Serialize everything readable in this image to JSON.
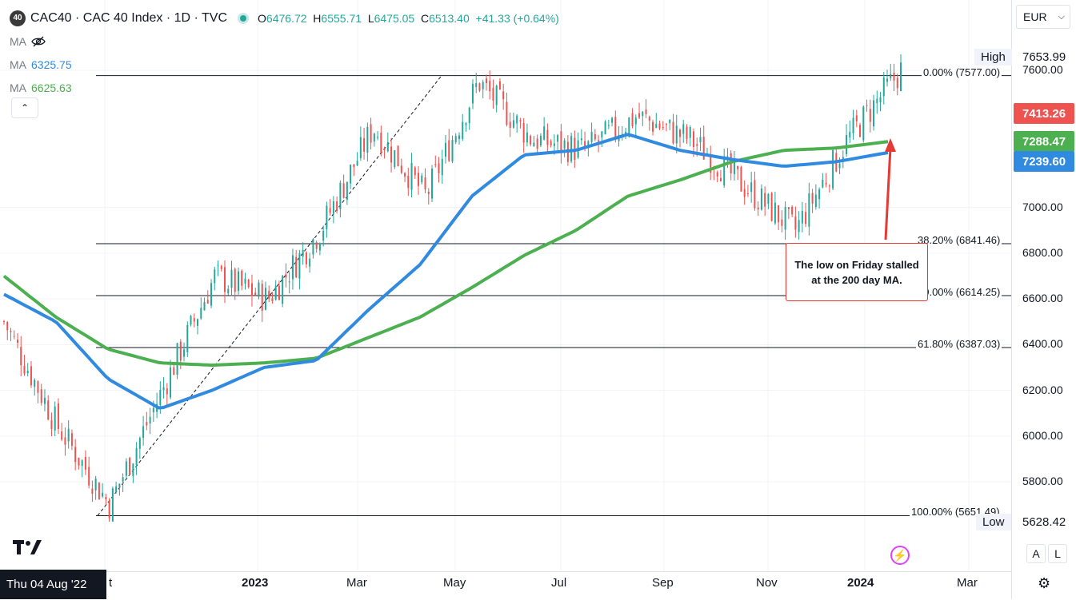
{
  "header": {
    "badge": "40",
    "title": "CAC40 · CAC 40 Index · 1D · TVC",
    "ohlc": {
      "o_label": "O",
      "o": "6476.72",
      "h_label": "H",
      "h": "6555.71",
      "l_label": "L",
      "l": "6475.05",
      "c_label": "C",
      "c": "6513.40",
      "change": "+41.33 (+0.64%)"
    },
    "ma_hidden_label": "MA",
    "ma1_label": "MA",
    "ma1_value": "6325.75",
    "ma2_label": "MA",
    "ma2_value": "6625.63",
    "collapse_icon": "chevron-up-icon"
  },
  "currency": "EUR",
  "price_axis": {
    "ticks": [
      "7600.00",
      "7000.00",
      "6800.00",
      "6600.00",
      "6400.00",
      "6200.00",
      "6000.00",
      "5800.00"
    ],
    "high_label": "High",
    "high_value": "7653.99",
    "low_label": "Low",
    "low_value": "5628.42",
    "last_price": "7413.26",
    "ma_green_tag": "7288.47",
    "ma_blue_tag": "7239.60",
    "scale_auto": "A",
    "scale_log": "L"
  },
  "time_axis": {
    "labels": [
      {
        "text": "t",
        "bold": false
      },
      {
        "text": "2023",
        "bold": true
      },
      {
        "text": "Mar",
        "bold": false
      },
      {
        "text": "May",
        "bold": false
      },
      {
        "text": "Jul",
        "bold": false
      },
      {
        "text": "Sep",
        "bold": false
      },
      {
        "text": "Nov",
        "bold": false
      },
      {
        "text": "2024",
        "bold": true
      },
      {
        "text": "Mar",
        "bold": false
      }
    ],
    "crosshair_date": "Thu 04 Aug '22"
  },
  "fib_levels": [
    {
      "label": "0.00% (7577.00)",
      "price": 7577.0
    },
    {
      "label": "38.20% (6841.46)",
      "price": 6841.46
    },
    {
      "label": "50.00% (6614.25)",
      "price": 6614.25
    },
    {
      "label": "61.80% (6387.03)",
      "price": 6387.03
    },
    {
      "label": "100.00% (5651.49)",
      "price": 5651.49
    }
  ],
  "annotation": "The low on Friday stalled at the 200 day MA.",
  "colors": {
    "up": "#26a69a",
    "down": "#ef5350",
    "ma_fast": "#2f8ae0",
    "ma_slow": "#4caf50",
    "last_tag": "#ef5350",
    "annot_border": "#e53935"
  },
  "icons": {
    "logo": "tradingview-logo-icon",
    "bolt": "lightning-icon",
    "settings": "gear-icon",
    "eye_off": "eye-off-icon"
  },
  "chart_data": {
    "type": "candlestick",
    "x": [
      "2022-08",
      "2022-09",
      "2022-10",
      "2022-11",
      "2022-12",
      "2023-01",
      "2023-02",
      "2023-03",
      "2023-04",
      "2023-05",
      "2023-06",
      "2023-07",
      "2023-08",
      "2023-09",
      "2023-10",
      "2023-11",
      "2023-12",
      "2024-01"
    ],
    "series": [
      {
        "values": [
          6500,
          6050,
          5700,
          6200,
          6700,
          6600,
          6900,
          7350,
          7050,
          7550,
          7300,
          7250,
          7400,
          7300,
          7100,
          6900,
          7300,
          7600
        ]
      },
      {
        "name": "MA",
        "values": [
          6620,
          6500,
          6250,
          6120,
          6200,
          6300,
          6330,
          6550,
          6750,
          7050,
          7230,
          7250,
          7320,
          7250,
          7210,
          7180,
          7200,
          7240
        ]
      },
      {
        "name": "MA",
        "values": [
          6700,
          6520,
          6380,
          6320,
          6310,
          6320,
          6340,
          6430,
          6520,
          6650,
          6790,
          6900,
          7050,
          7120,
          7200,
          7250,
          7260,
          7288
        ]
      }
    ],
    "ylim": [
      5500,
      7700
    ],
    "high": 7653.99,
    "low": 5628.42,
    "last": 7413.26
  }
}
